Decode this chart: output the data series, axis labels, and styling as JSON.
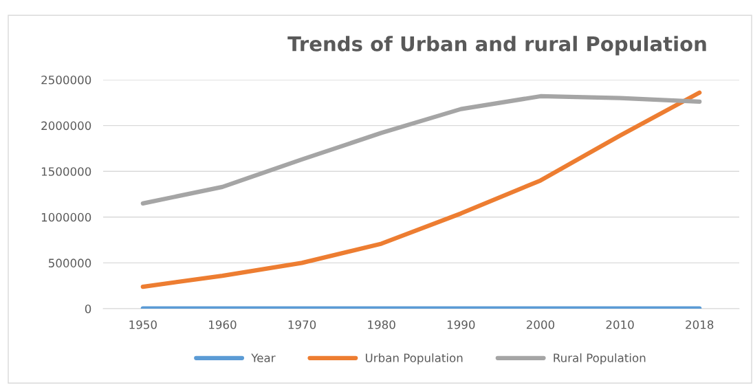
{
  "chart_data": {
    "type": "line",
    "title": "Trends of Urban and rural Population",
    "categories": [
      "1950",
      "1960",
      "1970",
      "1980",
      "1990",
      "2000",
      "2010",
      "2018"
    ],
    "series": [
      {
        "name": "Year",
        "color": "#5b9bd5",
        "values": [
          1950,
          1960,
          1970,
          1980,
          1990,
          2000,
          2010,
          2018
        ]
      },
      {
        "name": "Urban Population",
        "color": "#ed7d31",
        "values": [
          240000,
          360000,
          500000,
          710000,
          1040000,
          1400000,
          1890000,
          2360000
        ]
      },
      {
        "name": "Rural Population",
        "color": "#a5a5a5",
        "values": [
          1150000,
          1330000,
          1630000,
          1920000,
          2180000,
          2320000,
          2300000,
          2260000
        ]
      }
    ],
    "ylim": [
      0,
      2500000
    ],
    "yticks": [
      0,
      500000,
      1000000,
      1500000,
      2000000,
      2500000
    ],
    "grid": "y",
    "legend": "bottom",
    "marker": "none",
    "line_style": "solid"
  }
}
